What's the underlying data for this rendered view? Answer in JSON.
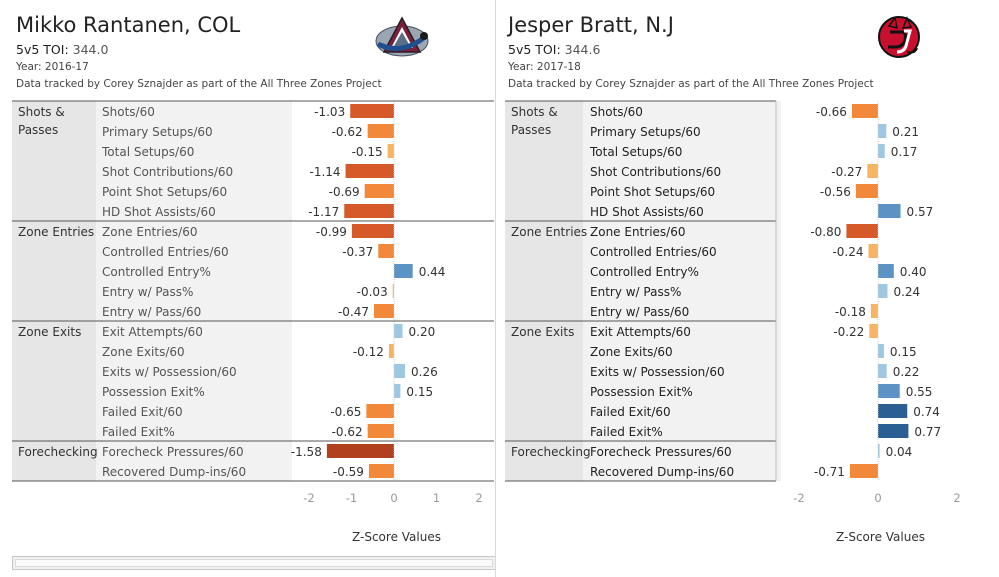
{
  "colors": {
    "pos_light": "#9ec7e4",
    "pos_mid": "#5b94c4",
    "pos_dark": "#2b5e92",
    "neg_light": "#f7b564",
    "neg_mid": "#f2893a",
    "neg_dark": "#d6592a",
    "neg_darkest": "#b0401e",
    "group_bg": "#e6e6e6"
  },
  "chart_data": [
    {
      "type": "bar",
      "orientation": "horizontal",
      "title": "Mikko Rantanen, COL",
      "toi_label": "5v5 TOI:",
      "toi_value": "344.0",
      "year": "Year: 2016-17",
      "credit": "Data tracked by Corey Sznajder as part of the All Three Zones Project",
      "logo": "avalanche-logo",
      "xlabel": "Z-Score Values",
      "xlim": [
        -2,
        2
      ],
      "xticks": [
        "-2",
        "-1",
        "0",
        "1",
        "2"
      ],
      "groups": [
        {
          "name": "Shots & Passes",
          "lines": [
            "Shots &",
            "Passes"
          ],
          "rows": [
            {
              "label": "Shots/60",
              "value": -1.03,
              "text": "-1.03"
            },
            {
              "label": "Primary Setups/60",
              "value": -0.62,
              "text": "-0.62"
            },
            {
              "label": "Total Setups/60",
              "value": -0.15,
              "text": "-0.15"
            },
            {
              "label": "Shot Contributions/60",
              "value": -1.14,
              "text": "-1.14"
            },
            {
              "label": "Point Shot Setups/60",
              "value": -0.69,
              "text": "-0.69"
            },
            {
              "label": "HD Shot Assists/60",
              "value": -1.17,
              "text": "-1.17"
            }
          ]
        },
        {
          "name": "Zone Entries",
          "lines": [
            "Zone Entries"
          ],
          "rows": [
            {
              "label": "Zone Entries/60",
              "value": -0.99,
              "text": "-0.99"
            },
            {
              "label": "Controlled Entries/60",
              "value": -0.37,
              "text": "-0.37"
            },
            {
              "label": "Controlled Entry%",
              "value": 0.44,
              "text": "0.44"
            },
            {
              "label": "Entry w/ Pass%",
              "value": -0.03,
              "text": "-0.03"
            },
            {
              "label": "Entry w/ Pass/60",
              "value": -0.47,
              "text": "-0.47"
            }
          ]
        },
        {
          "name": "Zone Exits",
          "lines": [
            "Zone Exits"
          ],
          "rows": [
            {
              "label": "Exit Attempts/60",
              "value": 0.2,
              "text": "0.20"
            },
            {
              "label": "Zone Exits/60",
              "value": -0.12,
              "text": "-0.12"
            },
            {
              "label": "Exits w/ Possession/60",
              "value": 0.26,
              "text": "0.26"
            },
            {
              "label": "Possession Exit%",
              "value": 0.15,
              "text": "0.15"
            },
            {
              "label": "Failed Exit/60",
              "value": -0.65,
              "text": "-0.65"
            },
            {
              "label": "Failed Exit%",
              "value": -0.62,
              "text": "-0.62"
            }
          ]
        },
        {
          "name": "Forechecking",
          "lines": [
            "Forechecking"
          ],
          "rows": [
            {
              "label": "Forecheck Pressures/60",
              "value": -1.58,
              "text": "-1.58"
            },
            {
              "label": "Recovered Dump-ins/60",
              "value": -0.59,
              "text": "-0.59"
            }
          ]
        }
      ]
    },
    {
      "type": "bar",
      "orientation": "horizontal",
      "title": "Jesper Bratt, N.J",
      "toi_label": "5v5 TOI:",
      "toi_value": "344.6",
      "year": "Year: 2017-18",
      "credit": "Data tracked by Corey Sznajder as part of the All Three Zones Project",
      "logo": "devils-logo",
      "xlabel": "Z-Score Values",
      "xlim": [
        -2,
        2
      ],
      "xticks": [
        "-2",
        "0",
        "2"
      ],
      "groups": [
        {
          "name": "Shots & Passes",
          "lines": [
            "Shots &",
            "Passes"
          ],
          "rows": [
            {
              "label": "Shots/60",
              "value": -0.66,
              "text": "-0.66"
            },
            {
              "label": "Primary Setups/60",
              "value": 0.21,
              "text": "0.21"
            },
            {
              "label": "Total Setups/60",
              "value": 0.17,
              "text": "0.17"
            },
            {
              "label": "Shot Contributions/60",
              "value": -0.27,
              "text": "-0.27"
            },
            {
              "label": "Point Shot Setups/60",
              "value": -0.56,
              "text": "-0.56"
            },
            {
              "label": "HD Shot Assists/60",
              "value": 0.57,
              "text": "0.57"
            }
          ]
        },
        {
          "name": "Zone Entries",
          "lines": [
            "Zone Entries"
          ],
          "rows": [
            {
              "label": "Zone Entries/60",
              "value": -0.8,
              "text": "-0.80"
            },
            {
              "label": "Controlled Entries/60",
              "value": -0.24,
              "text": "-0.24"
            },
            {
              "label": "Controlled Entry%",
              "value": 0.4,
              "text": "0.40"
            },
            {
              "label": "Entry w/ Pass%",
              "value": 0.24,
              "text": "0.24"
            },
            {
              "label": "Entry w/ Pass/60",
              "value": -0.18,
              "text": "-0.18"
            }
          ]
        },
        {
          "name": "Zone Exits",
          "lines": [
            "Zone Exits"
          ],
          "rows": [
            {
              "label": "Exit Attempts/60",
              "value": -0.22,
              "text": "-0.22"
            },
            {
              "label": "Zone Exits/60",
              "value": 0.15,
              "text": "0.15"
            },
            {
              "label": "Exits w/ Possession/60",
              "value": 0.22,
              "text": "0.22"
            },
            {
              "label": "Possession Exit%",
              "value": 0.55,
              "text": "0.55"
            },
            {
              "label": "Failed Exit/60",
              "value": 0.74,
              "text": "0.74"
            },
            {
              "label": "Failed Exit%",
              "value": 0.77,
              "text": "0.77"
            }
          ]
        },
        {
          "name": "Forechecking",
          "lines": [
            "Forechecking"
          ],
          "rows": [
            {
              "label": "Forecheck Pressures/60",
              "value": 0.04,
              "text": "0.04"
            },
            {
              "label": "Recovered Dump-ins/60",
              "value": -0.71,
              "text": "-0.71"
            }
          ]
        }
      ]
    }
  ]
}
